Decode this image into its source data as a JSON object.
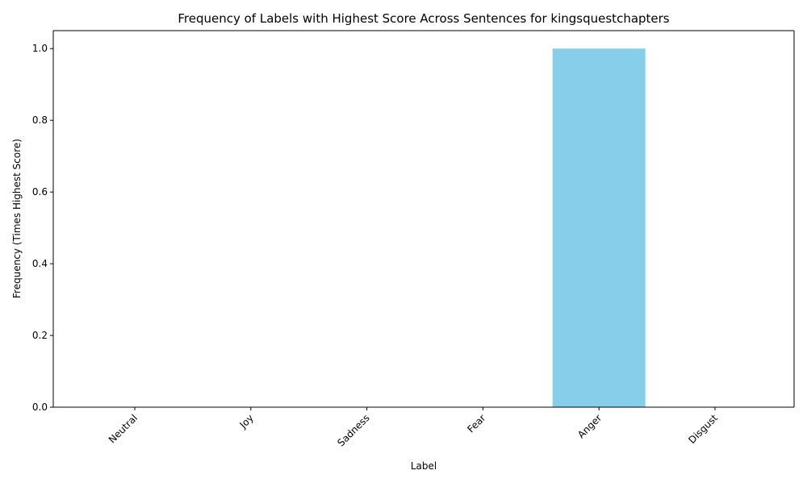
{
  "chart_data": {
    "type": "bar",
    "title": "Frequency of Labels with Highest Score Across Sentences for kingsquestchapters",
    "xlabel": "Label",
    "ylabel": "Frequency (Times Highest Score)",
    "categories": [
      "Neutral",
      "Joy",
      "Sadness",
      "Fear",
      "Anger",
      "Disgust"
    ],
    "values": [
      0,
      0,
      0,
      0,
      1,
      0
    ],
    "ylim": [
      0,
      1.05
    ],
    "yticks": [
      "0.0",
      "0.2",
      "0.4",
      "0.6",
      "0.8",
      "1.0"
    ],
    "bar_color": "#87CEEB",
    "grid": false,
    "legend": "none"
  }
}
